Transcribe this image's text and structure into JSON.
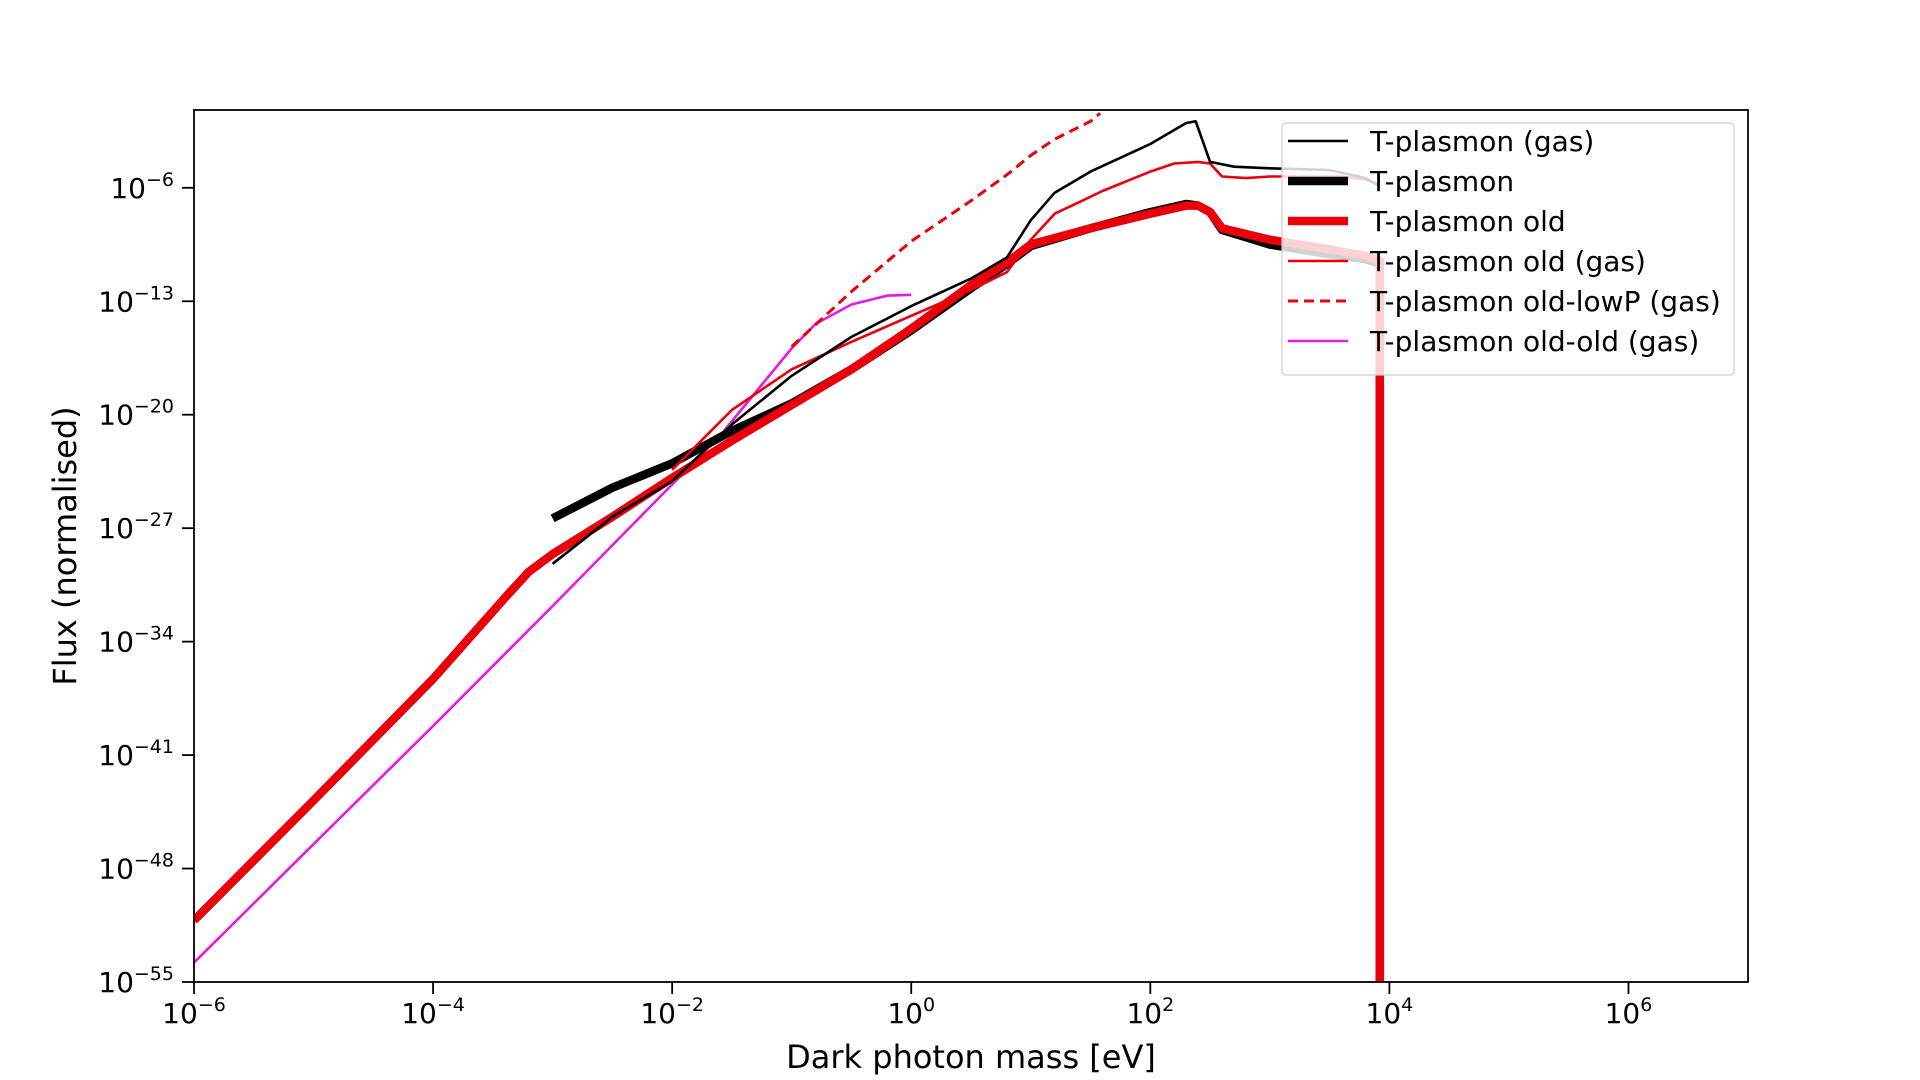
{
  "chart_data": {
    "type": "line",
    "title": "",
    "xlabel": "Dark photon mass [eV]",
    "ylabel": "Flux (normalised)",
    "x_scale": "log",
    "y_scale": "log",
    "xlim_log10": [
      -6,
      7
    ],
    "ylim_log10": [
      -55,
      -1.2
    ],
    "grid": false,
    "legend_placement": "top-right",
    "x_ticks": [
      {
        "exp": -6,
        "base": "10",
        "sup": "−6"
      },
      {
        "exp": -4,
        "base": "10",
        "sup": "−4"
      },
      {
        "exp": -2,
        "base": "10",
        "sup": "−2"
      },
      {
        "exp": 0,
        "base": "10",
        "sup": "0"
      },
      {
        "exp": 2,
        "base": "10",
        "sup": "2"
      },
      {
        "exp": 4,
        "base": "10",
        "sup": "4"
      },
      {
        "exp": 6,
        "base": "10",
        "sup": "6"
      }
    ],
    "y_ticks": [
      {
        "exp": -6,
        "base": "10",
        "sup": "−6"
      },
      {
        "exp": -13,
        "base": "10",
        "sup": "−13"
      },
      {
        "exp": -20,
        "base": "10",
        "sup": "−20"
      },
      {
        "exp": -27,
        "base": "10",
        "sup": "−27"
      },
      {
        "exp": -34,
        "base": "10",
        "sup": "−34"
      },
      {
        "exp": -41,
        "base": "10",
        "sup": "−41"
      },
      {
        "exp": -48,
        "base": "10",
        "sup": "−48"
      },
      {
        "exp": -55,
        "base": "10",
        "sup": "−55"
      }
    ],
    "series_note_log10": "points are [log10(mass), log10(flux)]",
    "series": [
      {
        "name": "T-plasmon old-old (gas)",
        "color": "#e619e6",
        "style": "solid",
        "weight": "thin",
        "points": [
          [
            -6,
            -53.8
          ],
          [
            -5,
            -46.5
          ],
          [
            -4,
            -39.2
          ],
          [
            -3,
            -31.8
          ],
          [
            -2,
            -24.3
          ],
          [
            -1.6,
            -21.3
          ],
          [
            -1.3,
            -18.6
          ],
          [
            -1,
            -15.9
          ],
          [
            -0.8,
            -14.4
          ],
          [
            -0.5,
            -13.2
          ],
          [
            -0.2,
            -12.65
          ],
          [
            0,
            -12.6
          ]
        ]
      },
      {
        "name": "T-plasmon old-lowP (gas)",
        "color": "#e8000b",
        "style": "dashed",
        "weight": "medium",
        "points": [
          [
            -1,
            -15.8
          ],
          [
            -0.5,
            -12.4
          ],
          [
            0,
            -9.3
          ],
          [
            0.5,
            -6.8
          ],
          [
            0.8,
            -5.2
          ],
          [
            1,
            -4.0
          ],
          [
            1.2,
            -3.0
          ],
          [
            1.5,
            -1.9
          ],
          [
            1.58,
            -1.4
          ]
        ]
      },
      {
        "name": "T-plasmon old (gas)",
        "color": "#e8000b",
        "style": "solid",
        "weight": "thin",
        "points": [
          [
            -2,
            -23.4
          ],
          [
            -1.5,
            -19.7
          ],
          [
            -1,
            -17.2
          ],
          [
            -0.5,
            -15.5
          ],
          [
            0,
            -13.9
          ],
          [
            0.5,
            -12.3
          ],
          [
            0.8,
            -11.2
          ],
          [
            1,
            -9.2
          ],
          [
            1.2,
            -7.6
          ],
          [
            1.4,
            -6.9
          ],
          [
            1.6,
            -6.2
          ],
          [
            2,
            -5.0
          ],
          [
            2.2,
            -4.5
          ],
          [
            2.4,
            -4.4
          ],
          [
            2.5,
            -4.5
          ],
          [
            2.6,
            -5.3
          ],
          [
            2.8,
            -5.4
          ],
          [
            3,
            -5.3
          ],
          [
            3.3,
            -5.3
          ],
          [
            3.6,
            -5.3
          ],
          [
            3.8,
            -5.5
          ],
          [
            3.92,
            -5.8
          ]
        ]
      },
      {
        "name": "T-plasmon old",
        "color": "#e8000b",
        "style": "solid",
        "weight": "thick",
        "points": [
          [
            -6,
            -51.2
          ],
          [
            -5,
            -43.8
          ],
          [
            -4,
            -36.3
          ],
          [
            -3.4,
            -31.3
          ],
          [
            -3.2,
            -29.7
          ],
          [
            -3,
            -28.6
          ],
          [
            -2.5,
            -26.3
          ],
          [
            -2,
            -23.9
          ],
          [
            -1.5,
            -21.6
          ],
          [
            -1,
            -19.4
          ],
          [
            -0.5,
            -17.2
          ],
          [
            0,
            -14.7
          ],
          [
            0.5,
            -12.0
          ],
          [
            0.8,
            -10.6
          ],
          [
            1,
            -9.5
          ],
          [
            1.5,
            -8.5
          ],
          [
            2,
            -7.6
          ],
          [
            2.3,
            -7.1
          ],
          [
            2.4,
            -7.1
          ],
          [
            2.5,
            -7.5
          ],
          [
            2.6,
            -8.5
          ],
          [
            3,
            -9.2
          ],
          [
            3.5,
            -9.8
          ],
          [
            3.8,
            -10.2
          ],
          [
            3.92,
            -10.5
          ],
          [
            3.92,
            -56
          ]
        ]
      },
      {
        "name": "T-plasmon",
        "color": "#000000",
        "style": "solid",
        "weight": "thick",
        "points": [
          [
            -3,
            -26.4
          ],
          [
            -2.5,
            -24.5
          ],
          [
            -2,
            -23.0
          ],
          [
            -1.5,
            -21.0
          ],
          [
            -1,
            -19.3
          ],
          [
            -0.5,
            -17.2
          ],
          [
            0,
            -14.8
          ],
          [
            0.5,
            -12.2
          ],
          [
            0.8,
            -10.7
          ],
          [
            1,
            -9.6
          ],
          [
            1.5,
            -8.5
          ],
          [
            2,
            -7.5
          ],
          [
            2.3,
            -7.0
          ],
          [
            2.4,
            -7.1
          ],
          [
            2.5,
            -7.5
          ],
          [
            2.6,
            -8.6
          ],
          [
            3,
            -9.5
          ],
          [
            3.5,
            -10.1
          ],
          [
            3.8,
            -10.4
          ],
          [
            3.92,
            -10.7
          ],
          [
            3.92,
            -56
          ]
        ]
      },
      {
        "name": "T-plasmon (gas)",
        "color": "#000000",
        "style": "solid",
        "weight": "thin",
        "points": [
          [
            -3,
            -29.2
          ],
          [
            -2.5,
            -26.3
          ],
          [
            -2,
            -24.1
          ],
          [
            -1.5,
            -20.6
          ],
          [
            -1,
            -17.6
          ],
          [
            -0.5,
            -15.2
          ],
          [
            0,
            -13.3
          ],
          [
            0.5,
            -11.6
          ],
          [
            0.8,
            -10.3
          ],
          [
            1,
            -8.0
          ],
          [
            1.2,
            -6.3
          ],
          [
            1.5,
            -5.0
          ],
          [
            2,
            -3.3
          ],
          [
            2.3,
            -2.0
          ],
          [
            2.38,
            -1.9
          ],
          [
            2.5,
            -4.4
          ],
          [
            2.7,
            -4.7
          ],
          [
            3,
            -4.8
          ],
          [
            3.5,
            -4.9
          ],
          [
            3.8,
            -5.4
          ],
          [
            3.92,
            -5.9
          ]
        ]
      }
    ],
    "legend": [
      {
        "label": "T-plasmon (gas)",
        "color": "#000000",
        "style": "solid",
        "weight": "thin"
      },
      {
        "label": "T-plasmon",
        "color": "#000000",
        "style": "solid",
        "weight": "thick"
      },
      {
        "label": "T-plasmon old",
        "color": "#e8000b",
        "style": "solid",
        "weight": "thick"
      },
      {
        "label": "T-plasmon old (gas)",
        "color": "#e8000b",
        "style": "solid",
        "weight": "thin"
      },
      {
        "label": "T-plasmon old-lowP (gas)",
        "color": "#e8000b",
        "style": "dashed",
        "weight": "medium"
      },
      {
        "label": "T-plasmon old-old (gas)",
        "color": "#e619e6",
        "style": "solid",
        "weight": "thin"
      }
    ]
  }
}
